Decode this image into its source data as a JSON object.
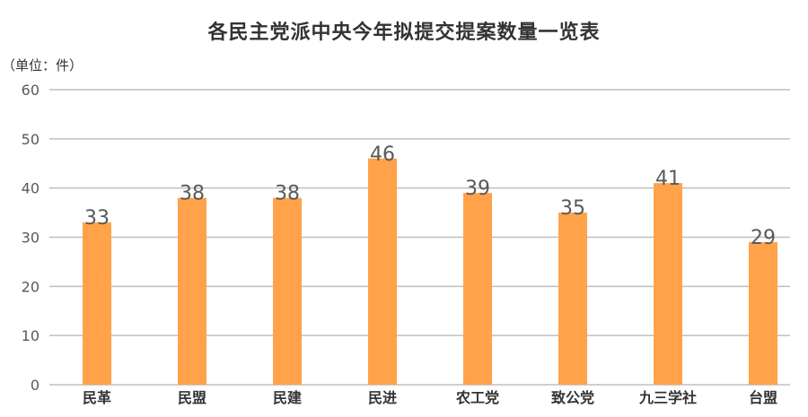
{
  "chart_data": {
    "type": "bar",
    "title": "各民主党派中央今年拟提交提案数量一览表",
    "unit_label": "（单位：件）",
    "categories": [
      "民革",
      "民盟",
      "民建",
      "民进",
      "农工党",
      "致公党",
      "九三学社",
      "台盟"
    ],
    "values": [
      33,
      38,
      38,
      46,
      39,
      35,
      41,
      29
    ],
    "ylim": [
      0,
      60
    ],
    "yticks": [
      0,
      10,
      20,
      30,
      40,
      50,
      60
    ],
    "grid": true,
    "bar_color": "#FFA24A",
    "grid_color": "#BFBFBF"
  }
}
